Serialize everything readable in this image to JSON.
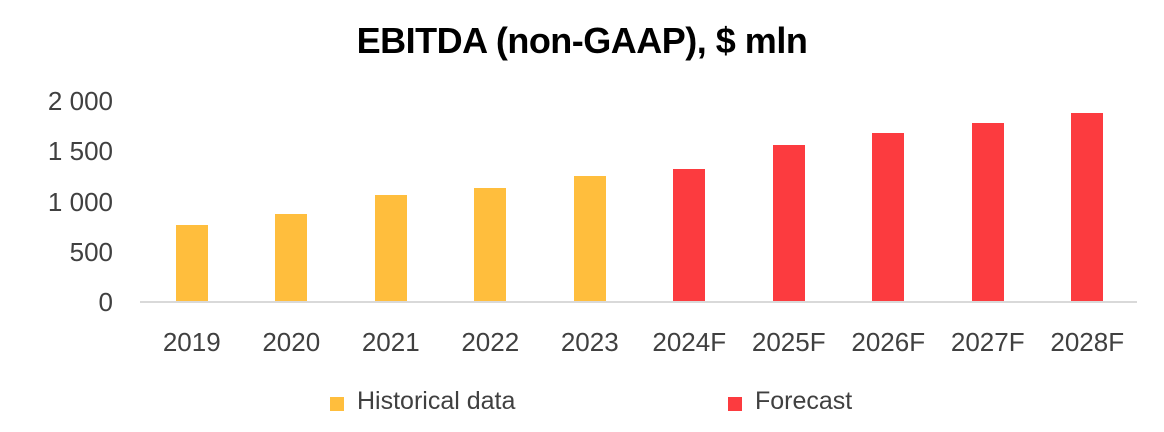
{
  "chart_data": {
    "type": "bar",
    "title": "EBITDA (non-GAAP), $ mln",
    "categories": [
      "2019",
      "2020",
      "2021",
      "2022",
      "2023",
      "2024F",
      "2025F",
      "2026F",
      "2027F",
      "2028F"
    ],
    "series": [
      {
        "name": "Historical data",
        "color": "#FFBE3D",
        "values": [
          770,
          880,
          1060,
          1130,
          1250,
          null,
          null,
          null,
          null,
          null
        ]
      },
      {
        "name": "Forecast",
        "color": "#FC3B3F",
        "values": [
          null,
          null,
          null,
          null,
          null,
          1320,
          1560,
          1680,
          1780,
          1880
        ]
      }
    ],
    "xlabel": "",
    "ylabel": "",
    "ylim": [
      0,
      2000
    ],
    "yticks": [
      {
        "value": 0,
        "label": "0"
      },
      {
        "value": 500,
        "label": "500"
      },
      {
        "value": 1000,
        "label": "1 000"
      },
      {
        "value": 1500,
        "label": "1 500"
      },
      {
        "value": 2000,
        "label": "2 000"
      }
    ],
    "grid": false,
    "legend_position": "bottom",
    "colors": {
      "axis_line": "#D9D9D9",
      "tick_text": "#404040",
      "title_text": "#000000"
    }
  }
}
